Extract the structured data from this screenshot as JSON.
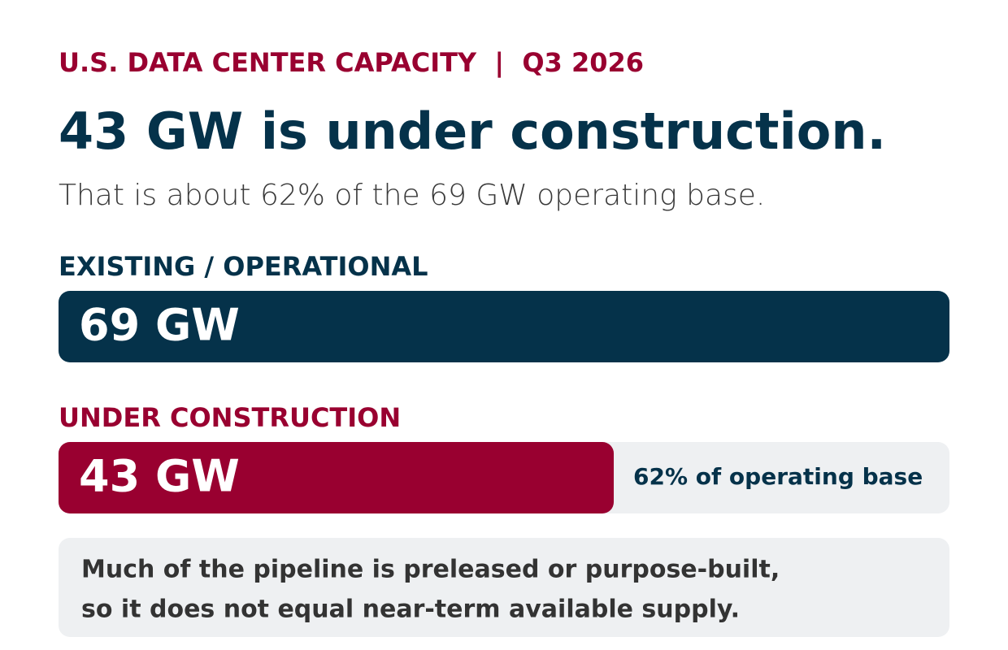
{
  "chart_data": {
    "type": "bar",
    "kicker": "U.S. DATA CENTER CAPACITY  |  Q3 2026",
    "title": "43 GW is under construction.",
    "subtitle": "That is about 62% of the 69 GW operating base.",
    "categories": [
      "EXISTING / OPERATIONAL",
      "UNDER CONSTRUCTION"
    ],
    "values": [
      69,
      43
    ],
    "value_labels": [
      "69 GW",
      "43 GW"
    ],
    "colors": [
      "#05324a",
      "#990030"
    ],
    "bar_annotation": "62% of operating base",
    "note": [
      "Much of the pipeline is preleased or purpose-built,",
      "so it does not equal near-term available supply."
    ]
  }
}
